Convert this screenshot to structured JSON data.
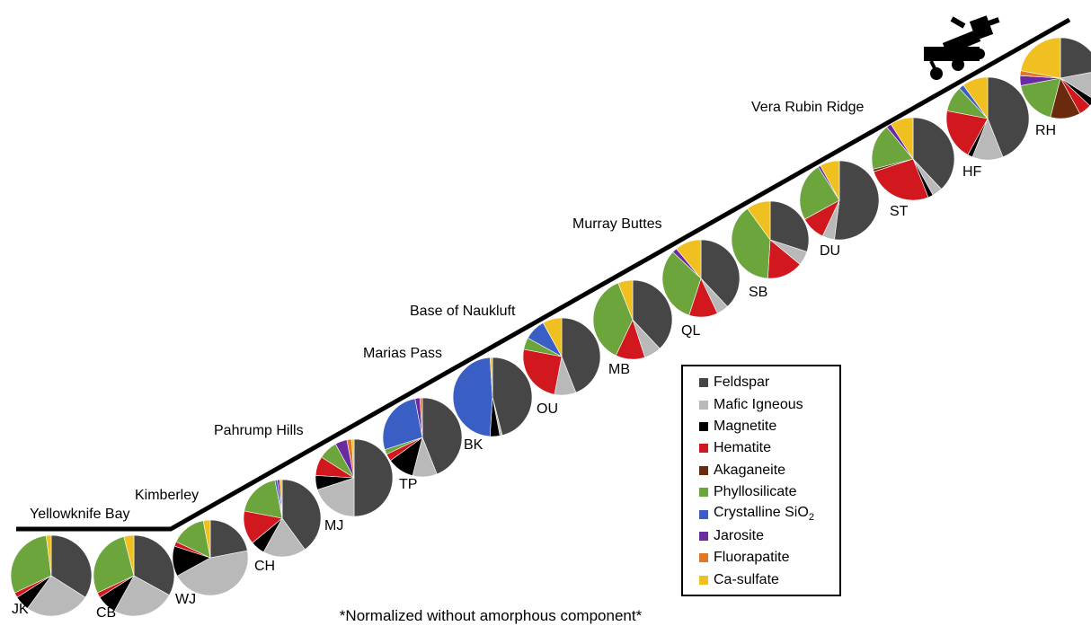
{
  "chart_data": {
    "type": "pie",
    "footnote": "*Normalized without amorphous component*",
    "legend_placement": "bottom-right",
    "minerals": [
      {
        "key": "feldspar",
        "name": "Feldspar",
        "color": "#464646"
      },
      {
        "key": "mafic",
        "name": "Mafic Igneous",
        "color": "#b9b9b9"
      },
      {
        "key": "magnetite",
        "name": "Magnetite",
        "color": "#000000"
      },
      {
        "key": "hematite",
        "name": "Hematite",
        "color": "#d0181e"
      },
      {
        "key": "akaganeite",
        "name": "Akaganeite",
        "color": "#6b2a0e"
      },
      {
        "key": "phyllosilicate",
        "name": "Phyllosilicate",
        "color": "#6ba53b"
      },
      {
        "key": "sio2",
        "name": "Crystalline SiO",
        "name_sub": "2",
        "color": "#3a5fc4"
      },
      {
        "key": "jarosite",
        "name": "Jarosite",
        "color": "#6b2ba0"
      },
      {
        "key": "fluorapatite",
        "name": "Fluorapatite",
        "color": "#e0782a"
      },
      {
        "key": "casulfate",
        "name": "Ca-sulfate",
        "color": "#f0c020"
      }
    ],
    "regions": [
      {
        "name": "Yellowknife Bay"
      },
      {
        "name": "Kimberley"
      },
      {
        "name": "Pahrump Hills"
      },
      {
        "name": "Marias Pass"
      },
      {
        "name": "Base of Naukluft"
      },
      {
        "name": "Murray Buttes"
      },
      {
        "name": "Vera Rubin Ridge"
      }
    ],
    "samples": [
      {
        "label": "JK",
        "values": {
          "feldspar": 34,
          "mafic": 26,
          "magnetite": 6,
          "hematite": 2,
          "akaganeite": 0,
          "phyllosilicate": 30,
          "sio2": 0,
          "jarosite": 0,
          "fluorapatite": 0,
          "casulfate": 2
        }
      },
      {
        "label": "CB",
        "values": {
          "feldspar": 33,
          "mafic": 25,
          "magnetite": 8,
          "hematite": 2,
          "akaganeite": 0,
          "phyllosilicate": 28,
          "sio2": 0,
          "jarosite": 0,
          "fluorapatite": 0,
          "casulfate": 4
        }
      },
      {
        "label": "WJ",
        "values": {
          "feldspar": 22,
          "mafic": 45,
          "magnetite": 13,
          "hematite": 2,
          "akaganeite": 0,
          "phyllosilicate": 15,
          "sio2": 0,
          "jarosite": 0,
          "fluorapatite": 0,
          "casulfate": 3
        }
      },
      {
        "label": "CH",
        "values": {
          "feldspar": 40,
          "mafic": 18,
          "magnetite": 6,
          "hematite": 14,
          "akaganeite": 0,
          "phyllosilicate": 19,
          "sio2": 1,
          "jarosite": 1,
          "fluorapatite": 0,
          "casulfate": 1
        }
      },
      {
        "label": "MJ",
        "values": {
          "feldspar": 50,
          "mafic": 20,
          "magnetite": 6,
          "hematite": 8,
          "akaganeite": 0,
          "phyllosilicate": 8,
          "sio2": 0,
          "jarosite": 5,
          "fluorapatite": 2,
          "casulfate": 1
        }
      },
      {
        "label": "TP",
        "values": {
          "feldspar": 44,
          "mafic": 10,
          "magnetite": 11,
          "hematite": 3,
          "akaganeite": 0,
          "phyllosilicate": 2,
          "sio2": 27,
          "jarosite": 2,
          "fluorapatite": 1,
          "casulfate": 0
        }
      },
      {
        "label": "BK",
        "values": {
          "feldspar": 46,
          "mafic": 1,
          "magnetite": 4,
          "hematite": 0,
          "akaganeite": 0,
          "phyllosilicate": 0,
          "sio2": 48,
          "jarosite": 0,
          "fluorapatite": 0,
          "casulfate": 1
        }
      },
      {
        "label": "OU",
        "values": {
          "feldspar": 44,
          "mafic": 9,
          "magnetite": 0,
          "hematite": 25,
          "akaganeite": 0,
          "phyllosilicate": 5,
          "sio2": 9,
          "jarosite": 0,
          "fluorapatite": 0,
          "casulfate": 8
        }
      },
      {
        "label": "MB",
        "values": {
          "feldspar": 38,
          "mafic": 7,
          "magnetite": 0,
          "hematite": 12,
          "akaganeite": 0,
          "phyllosilicate": 37,
          "sio2": 0,
          "jarosite": 0,
          "fluorapatite": 0,
          "casulfate": 6
        }
      },
      {
        "label": "QL",
        "values": {
          "feldspar": 38,
          "mafic": 5,
          "magnetite": 0,
          "hematite": 12,
          "akaganeite": 0,
          "phyllosilicate": 32,
          "sio2": 0,
          "jarosite": 2,
          "fluorapatite": 0,
          "casulfate": 11
        }
      },
      {
        "label": "SB",
        "values": {
          "feldspar": 30,
          "mafic": 6,
          "magnetite": 0,
          "hematite": 15,
          "akaganeite": 0,
          "phyllosilicate": 39,
          "sio2": 0,
          "jarosite": 0,
          "fluorapatite": 0,
          "casulfate": 10
        }
      },
      {
        "label": "DU",
        "values": {
          "feldspar": 52,
          "mafic": 5,
          "magnetite": 0,
          "hematite": 10,
          "akaganeite": 0,
          "phyllosilicate": 24,
          "sio2": 0,
          "jarosite": 1,
          "fluorapatite": 0,
          "casulfate": 8
        }
      },
      {
        "label": "ST",
        "values": {
          "feldspar": 38,
          "mafic": 4,
          "magnetite": 2,
          "hematite": 26,
          "akaganeite": 1,
          "phyllosilicate": 18,
          "sio2": 0,
          "jarosite": 2,
          "fluorapatite": 0,
          "casulfate": 9
        }
      },
      {
        "label": "HF",
        "values": {
          "feldspar": 44,
          "mafic": 12,
          "magnetite": 2,
          "hematite": 20,
          "akaganeite": 0,
          "phyllosilicate": 10,
          "sio2": 2,
          "jarosite": 0,
          "fluorapatite": 0,
          "casulfate": 10
        }
      },
      {
        "label": "RH",
        "values": {
          "feldspar": 22,
          "mafic": 12,
          "magnetite": 3,
          "hematite": 5,
          "akaganeite": 12,
          "phyllosilicate": 18,
          "sio2": 0,
          "jarosite": 4,
          "fluorapatite": 2,
          "casulfate": 22
        }
      }
    ]
  }
}
